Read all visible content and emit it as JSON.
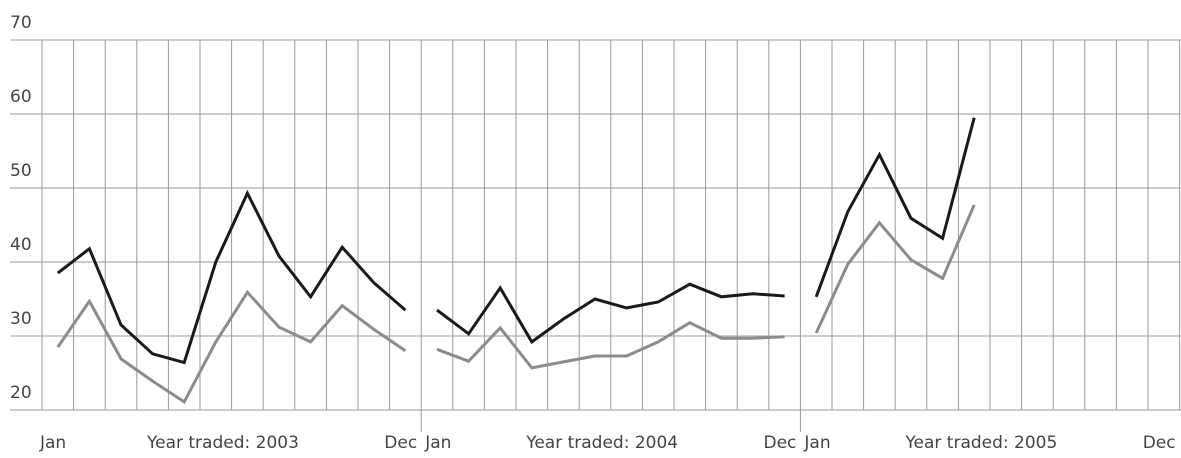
{
  "chart_data": {
    "type": "line",
    "categories": [
      "Jan",
      null,
      null,
      null,
      null,
      null,
      null,
      null,
      null,
      null,
      null,
      "Dec",
      "Jan",
      null,
      null,
      null,
      null,
      null,
      null,
      null,
      null,
      null,
      null,
      "Dec",
      "Jan",
      null,
      null,
      null,
      null,
      null,
      null,
      null,
      null,
      null,
      null,
      "Dec"
    ],
    "groups": [
      "Year traded: 2003",
      "Year traded: 2004",
      "Year traded: 2005"
    ],
    "series": [
      {
        "color": "#1a1a1a",
        "values": [
          38.5,
          41.8,
          31.5,
          27.6,
          26.4,
          40,
          49.3,
          40.8,
          35.3,
          42,
          37.2,
          33.5,
          33.5,
          30.3,
          36.5,
          29.2,
          32.3,
          35,
          33.8,
          34.6,
          37,
          35.3,
          35.7,
          35.4,
          35.3,
          46.8,
          54.5,
          45.9,
          43.2,
          59.5,
          null,
          null,
          null,
          null,
          null,
          null
        ]
      },
      {
        "color": "#8c8c8c",
        "values": [
          28.5,
          34.7,
          26.9,
          23.9,
          21.1,
          29.2,
          35.9,
          31.2,
          29.2,
          34.1,
          30.9,
          28,
          28.2,
          26.6,
          31.1,
          25.7,
          26.5,
          27.3,
          27.3,
          29.2,
          31.8,
          29.7,
          29.7,
          29.9,
          30.4,
          39.7,
          45.3,
          40.3,
          37.8,
          47.7,
          null,
          null,
          null,
          null,
          null,
          null
        ]
      }
    ],
    "ylim": [
      20,
      70
    ],
    "yticks": [
      20,
      30,
      40,
      50,
      60,
      70
    ],
    "grid": true
  }
}
